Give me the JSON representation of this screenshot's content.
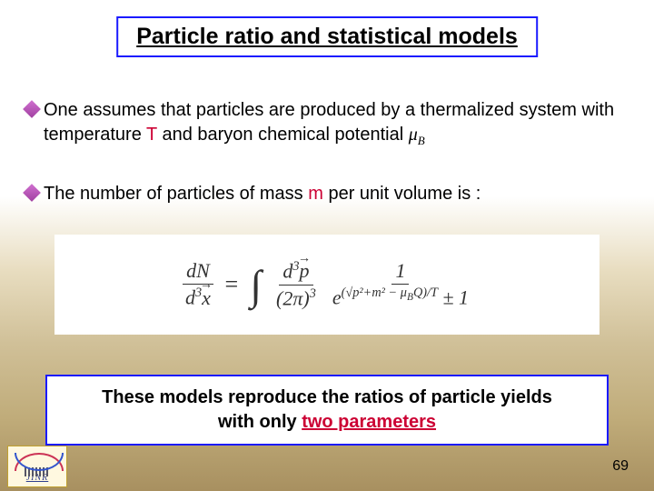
{
  "title": "Particle ratio and  statistical models",
  "bullets": [
    {
      "pre": "One assumes that particles are produced by a thermalized system with temperature ",
      "t": "T",
      "mid": " and baryon chemical potential ",
      "mu": "μ",
      "muSub": "B"
    },
    {
      "pre": "The number of particles of mass ",
      "m": "m",
      "post": " per unit volume is :"
    }
  ],
  "equation": {
    "lhs_num": "dN",
    "lhs_den_d3": "d",
    "lhs_den_x": "x",
    "eq": "=",
    "int": "∫",
    "mid_num_d3": "d",
    "mid_num_p": "p",
    "mid_den_2pi": "(2π)",
    "rhs_num": "1",
    "rhs_den_e": "e",
    "rhs_exp_open": "(√",
    "rhs_p2m2": "p²+m²",
    "rhs_minus": " − ",
    "rhs_mu": "μ",
    "rhs_B": "B",
    "rhs_Q": "Q)/T",
    "rhs_pm1": " ± 1"
  },
  "footer": {
    "line1": "These models reproduce the ratios of particle yields",
    "line2a": "with only ",
    "line2b": "two parameters"
  },
  "logo_text": "JINR",
  "page_number": "69",
  "colors": {
    "border": "#1a1aff",
    "highlight": "#cc0033",
    "text": "#000000"
  }
}
